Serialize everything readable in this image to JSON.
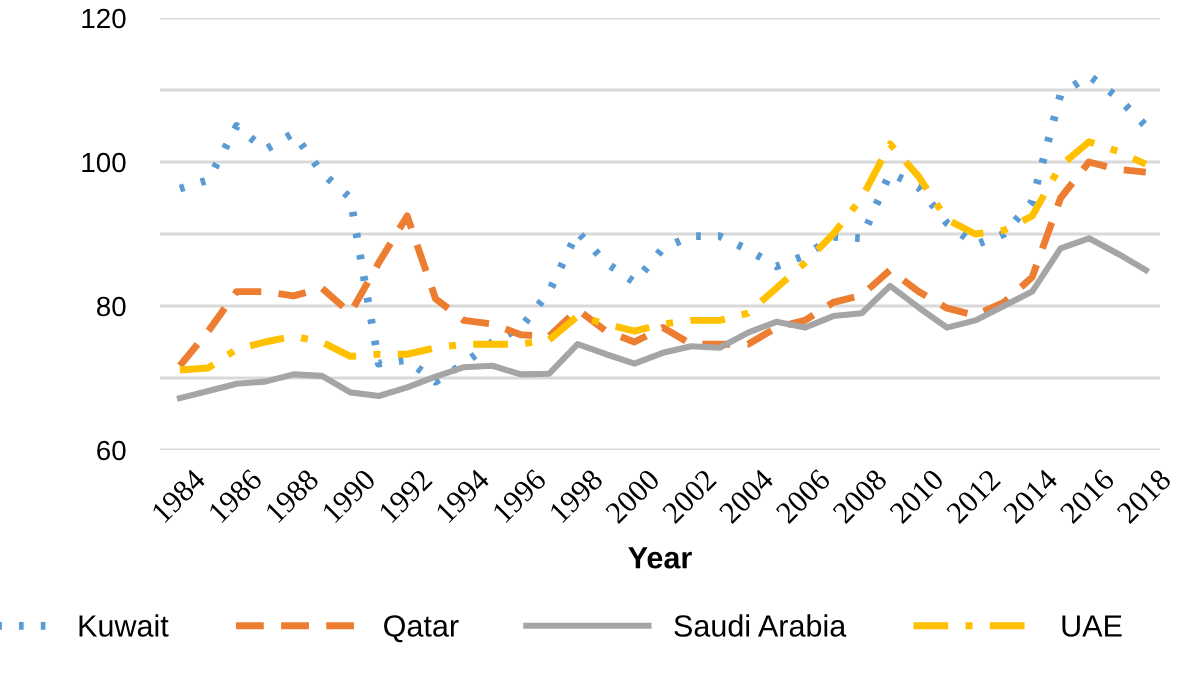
{
  "chart_data": {
    "type": "line",
    "xlabel": "Year",
    "categories": [
      "1984",
      null,
      "1986",
      null,
      "1988",
      null,
      "1990",
      null,
      "1992",
      null,
      "1994",
      null,
      "1996",
      null,
      "1998",
      null,
      "2000",
      null,
      "2002",
      null,
      "2004",
      null,
      "2006",
      null,
      "2008",
      null,
      "2010",
      null,
      "2012",
      null,
      "2014",
      null,
      "2016",
      null,
      "2018"
    ],
    "series": [
      {
        "name": "Kuwait",
        "color": "#5b9bd5",
        "line_style": "dotted",
        "values": [
          96.3,
          97.5,
          105,
          101.7,
          104,
          98.5,
          95,
          72,
          72.5,
          69.5,
          72,
          75,
          77,
          82,
          90.3,
          86,
          83.3,
          88,
          89.7,
          89.7,
          87.8,
          85.5,
          87,
          89.6,
          89.4,
          98.5,
          96.5,
          91.5,
          88.5,
          90,
          94.5,
          109.4,
          112,
          109,
          105
        ]
      },
      {
        "name": "Qatar",
        "color": "#ed7d31",
        "line_style": "dashed",
        "values": [
          71.7,
          76.5,
          82,
          82,
          81.4,
          82.5,
          79,
          86,
          92.5,
          81,
          78,
          77.5,
          76,
          75.8,
          79.5,
          76.5,
          75,
          77,
          74.7,
          74.7,
          74.7,
          77,
          78,
          80.5,
          81.5,
          85,
          82,
          79.7,
          78.7,
          80.5,
          84,
          95,
          100,
          99,
          98.6
        ]
      },
      {
        "name": "Saudi Arabia",
        "color": "#a5a5a5",
        "line_style": "solid",
        "values": [
          67.2,
          68.2,
          69.2,
          69.5,
          70.5,
          70.3,
          68,
          67.5,
          68.7,
          70.2,
          71.5,
          71.7,
          70.5,
          70.6,
          74.7,
          73.3,
          72,
          73.5,
          74.4,
          74.2,
          76.3,
          77.8,
          77,
          78.6,
          79,
          82.8,
          79.8,
          77,
          78,
          80,
          82,
          88,
          89.4,
          87.3,
          85
        ]
      },
      {
        "name": "UAE",
        "color": "#ffc000",
        "line_style": "dashdot",
        "values": [
          71.1,
          71.4,
          74,
          75,
          75.8,
          75,
          73,
          73.3,
          73.3,
          74.2,
          74.7,
          74.7,
          74.7,
          75.3,
          78.6,
          77.5,
          76.5,
          77.5,
          78,
          78,
          79,
          82.5,
          86,
          90,
          95,
          102.5,
          98,
          92,
          90,
          90.5,
          92.5,
          99.5,
          102.8,
          101.5,
          99.7
        ]
      }
    ],
    "ylim": [
      60,
      120
    ],
    "yticks": [
      60,
      {
        "value": 70,
        "label": null
      },
      80,
      {
        "value": 90,
        "label": null
      },
      100,
      {
        "value": 110,
        "label": null
      },
      120
    ],
    "grid": "y",
    "legend": "bottom"
  }
}
